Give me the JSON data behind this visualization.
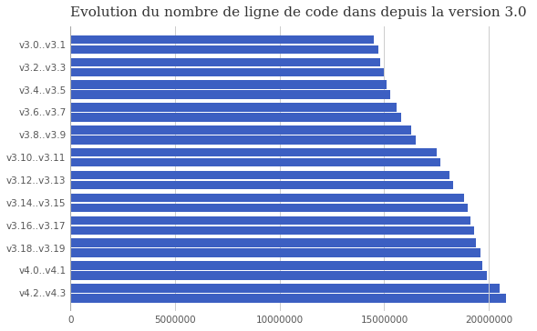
{
  "title": "Evolution du nombre de ligne de code dans depuis la version 3.0",
  "categories": [
    "v3.0..v3.1",
    "v3.2..v3.3",
    "v3.4..v3.5",
    "v3.6..v3.7",
    "v3.8..v3.9",
    "v3.10..v3.11",
    "v3.12..v3.13",
    "v3.14..v3.15",
    "v3.16..v3.17",
    "v3.18..v3.19",
    "v4.0..v4.1",
    "v4.2..v4.3"
  ],
  "values_top": [
    14700000,
    15000000,
    15300000,
    15800000,
    16500000,
    17700000,
    18300000,
    19000000,
    19300000,
    19600000,
    19900000,
    20800000
  ],
  "values_bottom": [
    14500000,
    14800000,
    15100000,
    15600000,
    16300000,
    17500000,
    18100000,
    18800000,
    19100000,
    19400000,
    19700000,
    20500000
  ],
  "bar_color": "#3C5FC2",
  "background_color": "#ffffff",
  "grid_color": "#cccccc",
  "title_fontsize": 11,
  "tick_fontsize": 7.5,
  "xlim": [
    0,
    22000000
  ],
  "xticks": [
    0,
    5000000,
    10000000,
    15000000,
    20000000
  ]
}
